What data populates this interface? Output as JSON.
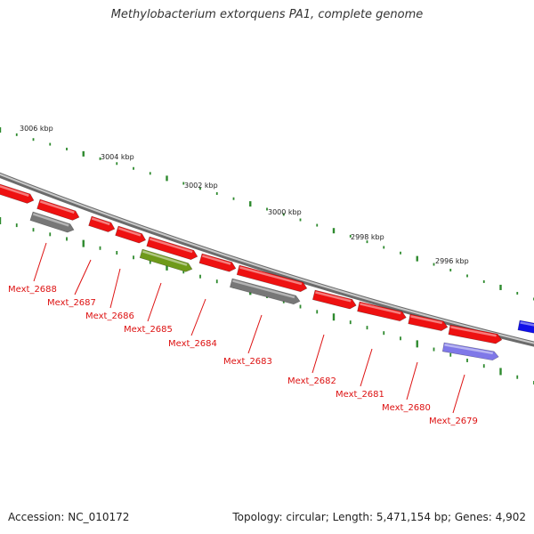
{
  "title": "Methylobacterium extorquens PA1, complete genome",
  "footer": {
    "accession": "Accession: NC_010172",
    "summary": "Topology: circular; Length: 5,471,154 bp; Genes: 4,902"
  },
  "colors": {
    "backbone": "#8a8a8a",
    "gene_red": "#ee1111",
    "gene_gray": "#777777",
    "gene_green": "#6f9a1a",
    "gene_lavender": "#7f78e8",
    "gene_blue": "#1010e8",
    "ticks": "#2e8a2e",
    "label": "#dd1111"
  },
  "scale_labels": [
    "3006 kbp",
    "3004 kbp",
    "3002 kbp",
    "3000 kbp",
    "2998 kbp",
    "2996 kbp"
  ],
  "gene_labels": [
    "Mext_2688",
    "Mext_2687",
    "Mext_2686",
    "Mext_2685",
    "Mext_2684",
    "Mext_2683",
    "Mext_2682",
    "Mext_2681",
    "Mext_2680",
    "Mext_2679"
  ]
}
